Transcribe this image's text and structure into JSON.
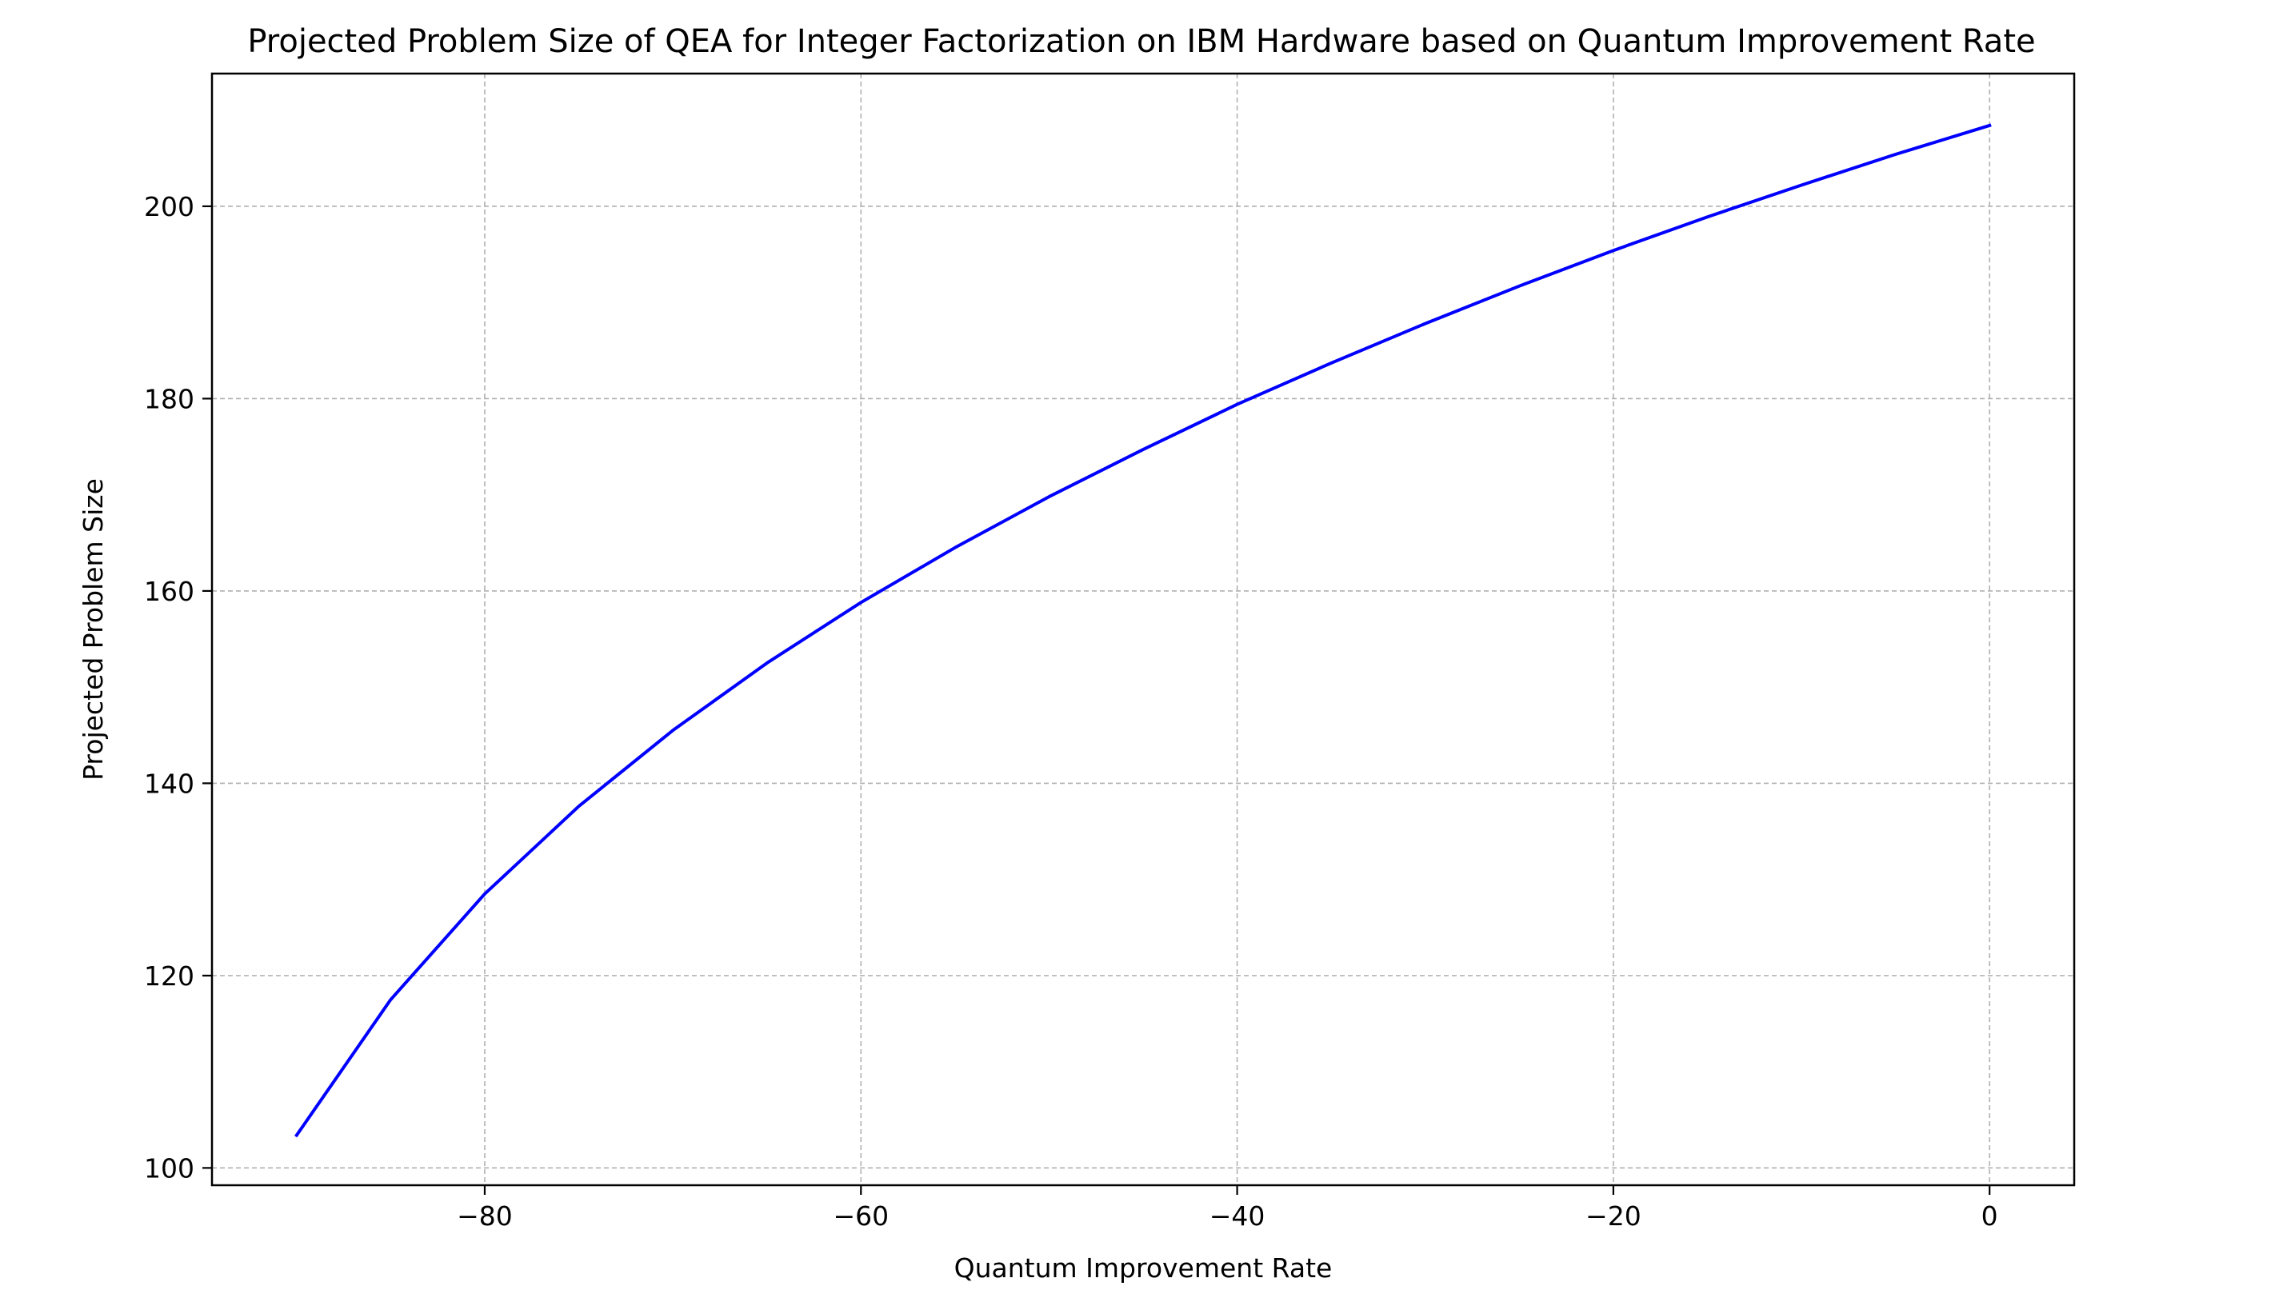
{
  "chart_data": {
    "type": "line",
    "title": "Projected Problem Size of QEA for Integer Factorization on IBM Hardware based on Quantum Improvement Rate",
    "xlabel": "Quantum Improvement Rate",
    "ylabel": "Projected Problem Size",
    "xlim": [
      -94.5,
      4.5
    ],
    "ylim": [
      98.2,
      213.8
    ],
    "xticks": [
      -80,
      -60,
      -40,
      -20,
      0
    ],
    "xtick_labels": [
      "−80",
      "−60",
      "−40",
      "−20",
      "0"
    ],
    "yticks": [
      100,
      120,
      140,
      160,
      180,
      200
    ],
    "ytick_labels": [
      "100",
      "120",
      "140",
      "160",
      "180",
      "200"
    ],
    "grid": true,
    "series": [
      {
        "color": "#0000ff",
        "x": [
          -90,
          -85,
          -80,
          -75,
          -70,
          -65,
          -60,
          -55,
          -50,
          -45,
          -40,
          -35,
          -30,
          -25,
          -20,
          -15,
          -10,
          -5,
          0
        ],
        "values": [
          103.4,
          117.5,
          128.5,
          137.6,
          145.5,
          152.5,
          158.8,
          164.5,
          169.8,
          174.7,
          179.4,
          183.7,
          187.8,
          191.7,
          195.4,
          198.9,
          202.2,
          205.4,
          208.4
        ]
      }
    ]
  }
}
